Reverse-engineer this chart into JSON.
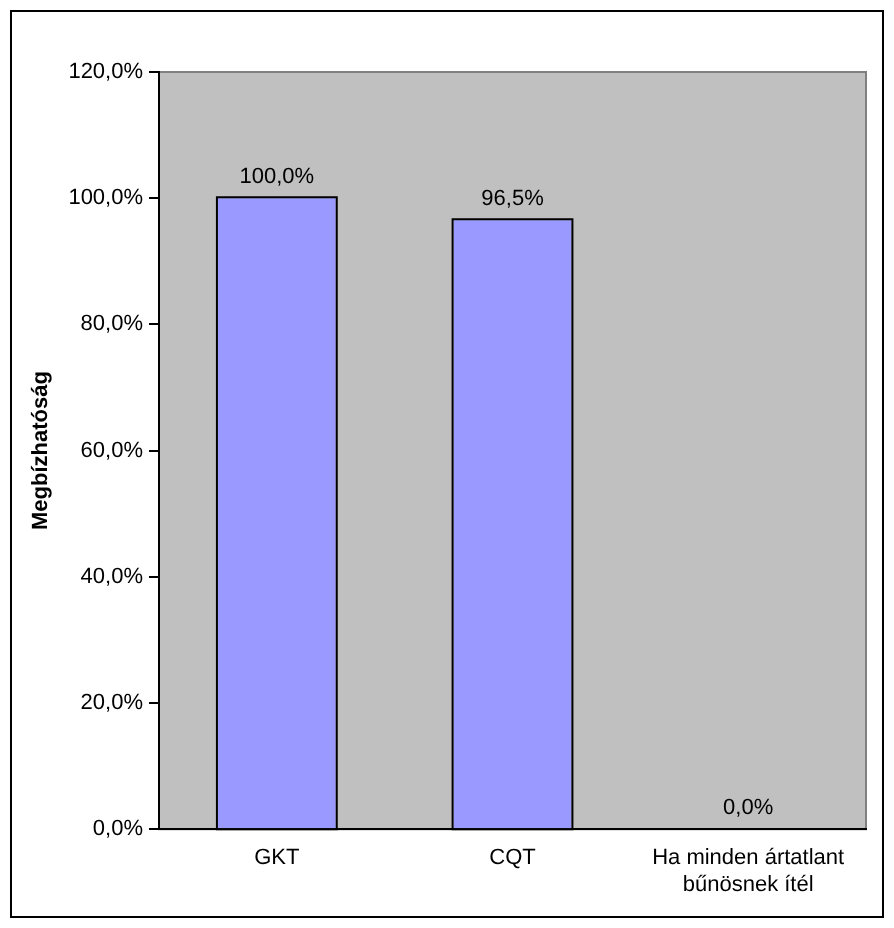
{
  "chart_data": {
    "type": "bar",
    "ylabel": "Megbízhatóság",
    "categories": [
      "GKT",
      "CQT",
      "Ha minden ártatlant bűnösnek ítél"
    ],
    "values": [
      100,
      96.5,
      0
    ],
    "color": "#9999ff",
    "value_labels": [
      "100,0%",
      "96,5%",
      "0,0%"
    ],
    "ylim": [
      0,
      120
    ],
    "yticks": [
      {
        "value": 0,
        "label": "0,0%"
      },
      {
        "value": 20,
        "label": "20,0%"
      },
      {
        "value": 40,
        "label": "40,0%"
      },
      {
        "value": 60,
        "label": "60,0%"
      },
      {
        "value": 80,
        "label": "80,0%"
      },
      {
        "value": 100,
        "label": "100,0%"
      },
      {
        "value": 120,
        "label": "120,0%"
      }
    ],
    "grid": false,
    "legend": false
  }
}
